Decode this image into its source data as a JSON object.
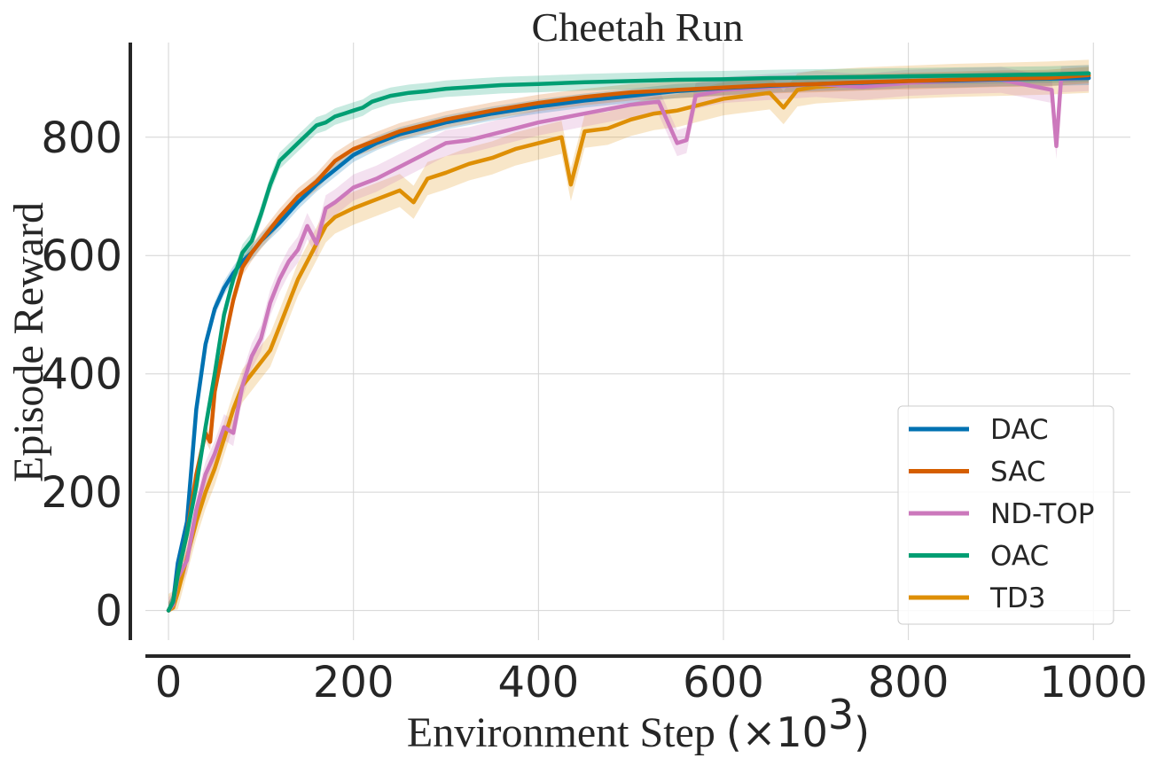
{
  "chart_data": {
    "type": "line",
    "title": "Cheetah Run",
    "xlabel": "Environment Step",
    "xlabel_unit": "(×10",
    "xlabel_unit_exp": "3",
    "xlabel_unit_close": ")",
    "ylabel": "Episode Reward",
    "xlim": [
      -25,
      1040
    ],
    "ylim": [
      -50,
      960
    ],
    "xticks": [
      0,
      200,
      400,
      600,
      800,
      1000
    ],
    "yticks": [
      0,
      200,
      400,
      600,
      800
    ],
    "grid": true,
    "legend_position": "lower-right",
    "series": [
      {
        "name": "DAC",
        "color": "#0072b2",
        "x": [
          0,
          5,
          10,
          20,
          30,
          40,
          50,
          60,
          70,
          80,
          90,
          100,
          120,
          140,
          160,
          180,
          200,
          225,
          250,
          275,
          300,
          350,
          400,
          450,
          500,
          550,
          600,
          650,
          700,
          750,
          800,
          850,
          900,
          950,
          995
        ],
        "y": [
          0,
          15,
          80,
          150,
          340,
          450,
          510,
          545,
          570,
          590,
          605,
          625,
          655,
          690,
          720,
          745,
          770,
          790,
          805,
          815,
          825,
          840,
          852,
          862,
          870,
          878,
          883,
          887,
          890,
          892,
          895,
          896,
          898,
          899,
          900
        ],
        "band": 12
      },
      {
        "name": "SAC",
        "color": "#d55e00",
        "x": [
          0,
          5,
          10,
          20,
          30,
          40,
          45,
          50,
          60,
          70,
          80,
          90,
          100,
          120,
          140,
          160,
          180,
          200,
          225,
          250,
          275,
          300,
          350,
          400,
          450,
          500,
          550,
          600,
          650,
          700,
          750,
          800,
          850,
          900,
          950,
          995
        ],
        "y": [
          0,
          15,
          60,
          130,
          230,
          300,
          285,
          370,
          450,
          525,
          580,
          605,
          625,
          665,
          700,
          725,
          760,
          780,
          795,
          810,
          820,
          830,
          845,
          858,
          868,
          876,
          880,
          884,
          888,
          890,
          893,
          895,
          897,
          899,
          900,
          905
        ],
        "band": 14
      },
      {
        "name": "ND-TOP",
        "color": "#cc78bc",
        "x": [
          0,
          5,
          10,
          20,
          30,
          40,
          50,
          60,
          70,
          80,
          90,
          100,
          110,
          120,
          130,
          140,
          150,
          160,
          170,
          180,
          200,
          225,
          250,
          275,
          300,
          325,
          350,
          375,
          400,
          450,
          500,
          530,
          550,
          560,
          570,
          600,
          650,
          700,
          750,
          800,
          850,
          900,
          955,
          960,
          965,
          995
        ],
        "y": [
          0,
          10,
          55,
          85,
          170,
          230,
          265,
          310,
          300,
          380,
          430,
          460,
          520,
          560,
          590,
          610,
          650,
          620,
          680,
          690,
          715,
          730,
          750,
          770,
          790,
          795,
          805,
          815,
          825,
          840,
          855,
          860,
          790,
          795,
          870,
          880,
          885,
          890,
          885,
          892,
          895,
          897,
          880,
          785,
          898,
          900
        ],
        "band": 22
      },
      {
        "name": "OAC",
        "color": "#009e73",
        "x": [
          0,
          5,
          10,
          20,
          30,
          40,
          50,
          60,
          70,
          80,
          90,
          100,
          110,
          120,
          130,
          140,
          150,
          160,
          170,
          180,
          190,
          200,
          210,
          220,
          240,
          260,
          280,
          300,
          320,
          340,
          360,
          380,
          400,
          450,
          500,
          550,
          600,
          650,
          700,
          750,
          800,
          850,
          900,
          950,
          995
        ],
        "y": [
          0,
          15,
          60,
          130,
          210,
          310,
          400,
          500,
          560,
          605,
          625,
          670,
          720,
          760,
          775,
          790,
          805,
          820,
          825,
          835,
          840,
          845,
          850,
          860,
          870,
          875,
          878,
          882,
          884,
          886,
          888,
          889,
          890,
          893,
          895,
          897,
          898,
          900,
          901,
          902,
          903,
          904,
          905,
          906,
          908
        ],
        "band": 14
      },
      {
        "name": "TD3",
        "color": "#de8f05",
        "x": [
          0,
          5,
          10,
          20,
          30,
          40,
          50,
          60,
          70,
          80,
          90,
          100,
          110,
          120,
          130,
          140,
          150,
          160,
          170,
          180,
          200,
          225,
          250,
          265,
          280,
          300,
          325,
          350,
          375,
          400,
          425,
          435,
          450,
          475,
          500,
          525,
          550,
          575,
          600,
          625,
          650,
          665,
          680,
          700,
          750,
          800,
          850,
          900,
          950,
          995
        ],
        "y": [
          0,
          5,
          30,
          90,
          150,
          200,
          240,
          290,
          340,
          380,
          400,
          420,
          440,
          480,
          520,
          560,
          590,
          620,
          650,
          665,
          680,
          695,
          710,
          690,
          730,
          740,
          755,
          765,
          780,
          790,
          800,
          720,
          810,
          815,
          830,
          840,
          845,
          855,
          865,
          870,
          875,
          850,
          880,
          885,
          890,
          893,
          896,
          898,
          900,
          903
        ],
        "band": 28
      }
    ]
  }
}
